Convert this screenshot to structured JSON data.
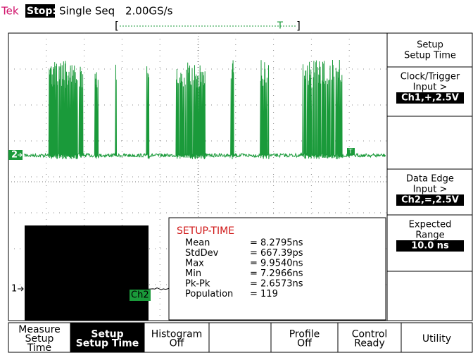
{
  "header": {
    "brand": "Tek",
    "state": "Stop:",
    "mode": "Single Seq",
    "rate": "2.00GS/s",
    "trigger_marker": "T"
  },
  "display": {
    "ch2_marker": "2",
    "ch1_marker": "1",
    "ch2_label": "Ch2",
    "trigger_marker": "T"
  },
  "measurement": {
    "title": "SETUP-TIME",
    "rows": [
      {
        "label": "Mean",
        "value": "= 8.2795ns"
      },
      {
        "label": "StdDev",
        "value": "= 667.39ps"
      },
      {
        "label": "Max",
        "value": "= 9.9540ns"
      },
      {
        "label": "Min",
        "value": "= 7.2966ns"
      },
      {
        "label": "Pk-Pk",
        "value": "= 2.6573ns"
      },
      {
        "label": "Population",
        "value": "= 119"
      }
    ]
  },
  "side_menu": [
    {
      "lines": [
        "Setup",
        "Setup Time"
      ]
    },
    {
      "lines": [
        "Clock/Trigger",
        "Input >"
      ],
      "setting": "Ch1,+,2.5V"
    },
    {
      "lines": [
        "Data Edge",
        "Input >"
      ],
      "setting": "Ch2,=,2.5V"
    },
    {
      "lines": [
        "Expected",
        "Range"
      ],
      "setting": "10.0 ns"
    }
  ],
  "bottom_menu": [
    {
      "lines": [
        "Measure",
        "Setup",
        "Time"
      ]
    },
    {
      "lines": [
        "Setup",
        "Setup Time"
      ],
      "selected": true
    },
    {
      "lines": [
        "Histogram",
        "Off"
      ]
    },
    {
      "lines": [
        "Profile",
        "Off"
      ]
    },
    {
      "lines": [
        "Control",
        "Ready"
      ]
    },
    {
      "lines": [
        "Utility"
      ]
    }
  ]
}
